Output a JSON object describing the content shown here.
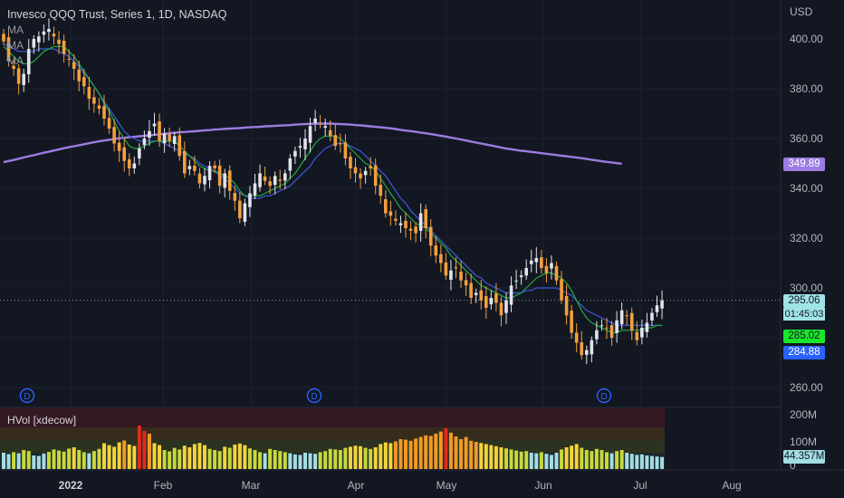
{
  "header": {
    "title": "Invesco QQQ Trust, Series 1, 1D, NASDAQ",
    "indicators": [
      "MA",
      "MA",
      "MA"
    ],
    "currency": "USD"
  },
  "colors": {
    "background": "#131722",
    "up_candle": "#e0e3eb",
    "down_candle": "#f2a03f",
    "ma_fast": "#22ab3e",
    "ma_mid": "#3d5bd9",
    "ma_slow": "#9c7ce0",
    "grid": "#1e222d",
    "dividend": "#2962ff"
  },
  "price_tags": [
    {
      "label": "349.89",
      "value": 349.89,
      "bg": "#9c7ce0",
      "fg": "#ffffff"
    },
    {
      "label": "295.06",
      "value": 295.06,
      "bg": "#9fe3e7",
      "fg": "#131722"
    },
    {
      "label": "285.02",
      "value": 285.02,
      "bg": "#19e62b",
      "fg": "#131722"
    },
    {
      "label": "284.88",
      "value": 284.88,
      "bg": "#2962ff",
      "fg": "#ffffff"
    }
  ],
  "countdown": "01:45:03",
  "volume_panel": {
    "label": "HVol [xdecow]",
    "ticks": [
      "200M",
      "100M",
      "0"
    ],
    "last_label": "44.357M",
    "last_value": 44.357
  },
  "chart_data": {
    "type": "candlestick",
    "title": "Invesco QQQ Trust, Series 1, 1D, NASDAQ",
    "ylabel": "USD",
    "ylim": [
      252,
      412
    ],
    "yticks": [
      260,
      280,
      300,
      320,
      340,
      360,
      380,
      400
    ],
    "ytick_labels": [
      "260.00",
      "280.00",
      "300.00",
      "320.00",
      "340.00",
      "360.00",
      "380.00",
      "400.00"
    ],
    "xtick_labels": [
      "2022",
      "Feb",
      "Mar",
      "Apr",
      "May",
      "Jun",
      "Jul",
      "Aug"
    ],
    "last_price": 295.06,
    "closes": [
      399,
      391,
      388,
      382,
      386,
      396,
      400,
      401,
      403,
      404,
      401,
      398,
      394,
      392,
      388,
      383,
      381,
      376,
      374,
      372,
      368,
      364,
      358,
      355,
      351,
      348,
      350,
      356,
      360,
      363,
      366,
      359,
      362,
      359,
      361,
      353,
      346,
      349,
      347,
      342,
      345,
      349,
      348,
      341,
      346,
      339,
      335,
      328,
      334,
      338,
      342,
      346,
      343,
      341,
      345,
      343,
      346,
      352,
      355,
      357,
      360,
      365,
      368,
      366,
      365,
      361,
      357,
      358,
      352,
      348,
      346,
      344,
      347,
      348,
      341,
      337,
      330,
      329,
      327,
      326,
      324,
      323,
      322,
      330,
      324,
      317,
      313,
      310,
      305,
      307,
      308,
      303,
      301,
      296,
      298,
      295,
      292,
      296,
      294,
      289,
      295,
      301,
      303,
      305,
      308,
      311,
      312,
      308,
      306,
      310,
      303,
      295,
      289,
      282,
      278,
      273,
      275,
      279,
      283,
      285,
      284,
      280,
      287,
      291,
      289,
      283,
      279,
      284,
      286,
      290,
      293,
      295
    ],
    "ma_fast": [
      397,
      395,
      393,
      391,
      390,
      390,
      391,
      393,
      395,
      396,
      397,
      397,
      397,
      395,
      393,
      390,
      387,
      384,
      381,
      378,
      374,
      371,
      367,
      363,
      360,
      357,
      356,
      356,
      357,
      358,
      359,
      359,
      359,
      359,
      359,
      357,
      355,
      353,
      351,
      349,
      348,
      347,
      347,
      346,
      345,
      344,
      342,
      339,
      337,
      337,
      337,
      337,
      338,
      339,
      340,
      341,
      342,
      344,
      346,
      349,
      352,
      355,
      358,
      360,
      361,
      361,
      361,
      360,
      358,
      356,
      354,
      352,
      350,
      349,
      347,
      344,
      341,
      338,
      335,
      332,
      330,
      328,
      326,
      325,
      324,
      322,
      320,
      318,
      316,
      313,
      311,
      309,
      307,
      305,
      303,
      301,
      300,
      299,
      298,
      297,
      296,
      296,
      297,
      298,
      300,
      302,
      304,
      305,
      306,
      306,
      305,
      304,
      302,
      299,
      295,
      291,
      288,
      286,
      285,
      284,
      283,
      282,
      282,
      283,
      283,
      283,
      283,
      283,
      284,
      284,
      285,
      285.02
    ],
    "ma_mid": [
      398,
      397,
      396,
      395,
      395,
      395,
      395,
      396,
      396,
      396,
      396,
      395,
      394,
      393,
      391,
      389,
      386,
      384,
      381,
      378,
      375,
      372,
      369,
      366,
      363,
      361,
      360,
      359,
      359,
      359,
      359,
      359,
      358,
      357,
      356,
      355,
      354,
      353,
      352,
      350,
      349,
      348,
      347,
      345,
      344,
      342,
      340,
      338,
      337,
      336,
      336,
      336,
      337,
      337,
      338,
      339,
      340,
      341,
      343,
      345,
      347,
      349,
      352,
      354,
      356,
      357,
      358,
      358,
      358,
      357,
      356,
      355,
      353,
      351,
      349,
      347,
      345,
      342,
      339,
      336,
      334,
      331,
      329,
      327,
      325,
      323,
      321,
      319,
      317,
      315,
      313,
      311,
      309,
      307,
      305,
      304,
      302,
      301,
      300,
      299,
      298,
      298,
      298,
      298,
      299,
      299,
      300,
      300,
      300,
      300,
      300,
      299,
      298,
      297,
      295,
      293,
      291,
      290,
      289,
      288,
      287,
      286,
      285,
      285,
      285,
      285,
      285,
      285,
      285,
      285,
      285,
      284.88
    ],
    "ma_slow": [
      350.5,
      351.0,
      351.4,
      351.9,
      352.4,
      352.9,
      353.3,
      353.8,
      354.3,
      354.7,
      355.2,
      355.6,
      356.1,
      356.5,
      356.9,
      357.3,
      357.7,
      358.1,
      358.5,
      358.9,
      359.2,
      359.5,
      359.8,
      360.1,
      360.3,
      360.5,
      360.7,
      360.9,
      361.1,
      361.3,
      361.5,
      361.7,
      361.9,
      362.1,
      362.3,
      362.5,
      362.6,
      362.8,
      362.9,
      363.1,
      363.3,
      363.4,
      363.6,
      363.7,
      363.9,
      364.0,
      364.1,
      364.2,
      364.4,
      364.5,
      364.6,
      364.7,
      364.9,
      365.0,
      365.1,
      365.2,
      365.3,
      365.4,
      365.6,
      365.7,
      365.8,
      365.9,
      366.0,
      366.0,
      366.0,
      366.0,
      365.9,
      365.8,
      365.7,
      365.6,
      365.4,
      365.3,
      365.1,
      364.9,
      364.7,
      364.5,
      364.3,
      364.1,
      363.8,
      363.5,
      363.2,
      363.0,
      362.7,
      362.4,
      362.1,
      361.8,
      361.5,
      361.1,
      360.8,
      360.4,
      360.0,
      359.6,
      359.2,
      358.8,
      358.4,
      358.0,
      357.6,
      357.2,
      356.8,
      356.4,
      356.0,
      355.7,
      355.4,
      355.1,
      354.9,
      354.6,
      354.4,
      354.1,
      353.9,
      353.6,
      353.4,
      353.1,
      352.9,
      352.6,
      352.4,
      352.1,
      351.8,
      351.5,
      351.2,
      350.9,
      350.6,
      350.4,
      350.1,
      349.89
    ],
    "volume_max": 200,
    "volumes": [
      60,
      55,
      62,
      58,
      70,
      66,
      50,
      48,
      57,
      63,
      72,
      68,
      64,
      75,
      80,
      70,
      62,
      58,
      66,
      74,
      95,
      88,
      82,
      98,
      105,
      90,
      85,
      160,
      140,
      130,
      95,
      88,
      70,
      65,
      78,
      72,
      86,
      80,
      92,
      96,
      88,
      74,
      70,
      66,
      82,
      78,
      90,
      94,
      88,
      76,
      70,
      62,
      58,
      74,
      70,
      66,
      62,
      58,
      54,
      52,
      60,
      58,
      56,
      62,
      66,
      74,
      72,
      70,
      78,
      82,
      86,
      84,
      78,
      74,
      80,
      92,
      98,
      95,
      102,
      110,
      108,
      104,
      112,
      118,
      124,
      122,
      130,
      138,
      150,
      134,
      120,
      110,
      118,
      104,
      100,
      96,
      92,
      88,
      84,
      80,
      76,
      72,
      68,
      64,
      66,
      60,
      58,
      62,
      56,
      52,
      60,
      72,
      80,
      86,
      92,
      78,
      70,
      66,
      74,
      70,
      62,
      58,
      66,
      70,
      60,
      56,
      52,
      54,
      50,
      48,
      46,
      44.357
    ]
  }
}
